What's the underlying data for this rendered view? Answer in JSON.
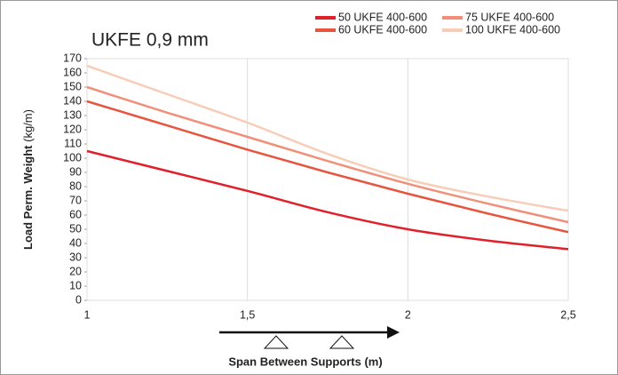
{
  "chart_data": {
    "type": "line",
    "title": "UKFE 0,9 mm",
    "xlabel": "Span Between Supports (m)",
    "ylabel": "Load Perm. Weight",
    "ylabel_unit": "(kg/m)",
    "x": [
      1,
      1.25,
      1.5,
      1.75,
      2,
      2.25,
      2.5
    ],
    "series": [
      {
        "name": "50 UKFE 400-600",
        "color": "#e0202a",
        "values": [
          105,
          91,
          77,
          62,
          50,
          42,
          36
        ]
      },
      {
        "name": "60 UKFE 400-600",
        "color": "#e8553f",
        "values": [
          140,
          123,
          106,
          90,
          75,
          61,
          48
        ]
      },
      {
        "name": "75 UKFE 400-600",
        "color": "#f0907a",
        "values": [
          150,
          132,
          115,
          98,
          82,
          68,
          55
        ]
      },
      {
        "name": "100 UKFE 400-600",
        "color": "#f8cdb8",
        "values": [
          165,
          145,
          125,
          103,
          85,
          73,
          63
        ]
      }
    ],
    "xlim": [
      1,
      2.5
    ],
    "xticks": [
      1,
      {
        "value": 1.5,
        "label": "1,5"
      },
      2,
      {
        "value": 2.5,
        "label": "2,5"
      }
    ],
    "ylim": [
      0,
      170
    ],
    "yticks": [
      0,
      10,
      20,
      30,
      40,
      50,
      60,
      70,
      80,
      90,
      100,
      110,
      120,
      130,
      140,
      150,
      160,
      170
    ],
    "grid": true,
    "legend": "top-right"
  }
}
